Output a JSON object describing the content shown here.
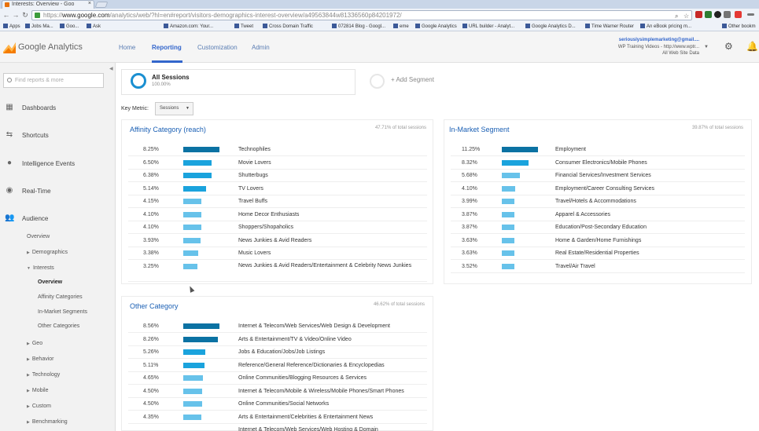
{
  "browser": {
    "tab_title": "Interests: Overview - Goo",
    "url_scheme": "https://",
    "url_host": "www.google.com",
    "url_path": "/analytics/web/?hl=en#report/visitors-demographics-interest-overview/a49563844w81336560p84201972/",
    "bookmarks": [
      "Apps",
      "Jobs Ma...",
      "Goo...",
      "Ask",
      "Amazon.com: Your...",
      "Tweet",
      "Cross Domain Traffic",
      "072814 Blog - Googl...",
      "eme",
      "Google Analytics",
      "URL builder - Analyt...",
      "Google Analytics D...",
      "Time Warner Router",
      "An eBook pricing m...",
      "Other bookm"
    ]
  },
  "header": {
    "logo_text": "Google Analytics",
    "nav": [
      "Home",
      "Reporting",
      "Customization",
      "Admin"
    ],
    "account_email": "seriouslysimplemarketing@gmail....",
    "account_property": "WP Training Videos - http://www.wptr...",
    "account_view": "All Web Site Data"
  },
  "sidebar": {
    "search_placeholder": "Find reports & more",
    "items": {
      "dashboards": "Dashboards",
      "shortcuts": "Shortcuts",
      "intelligence": "Intelligence Events",
      "realtime": "Real-Time",
      "audience": "Audience"
    },
    "audience_sub": {
      "overview": "Overview",
      "demographics": "Demographics",
      "interests": "Interests",
      "geo": "Geo",
      "behavior": "Behavior",
      "technology": "Technology",
      "mobile": "Mobile",
      "custom": "Custom",
      "benchmarking": "Benchmarking"
    },
    "interests_sub": {
      "overview": "Overview",
      "affinity": "Affinity Categories",
      "inmarket": "In-Market Segments",
      "other": "Other Categories"
    }
  },
  "segment": {
    "name": "All Sessions",
    "pct": "100.00%",
    "add_label": "+ Add Segment"
  },
  "key_metric": {
    "label": "Key Metric:",
    "value": "Sessions"
  },
  "colors": {
    "bar_dark": "#0b72a3",
    "bar_mid": "#1aa3dd",
    "bar_light": "#67c2ea",
    "link": "#1a5fb4"
  },
  "affinity": {
    "title": "Affinity Category (reach)",
    "share": "47.71% of total sessions",
    "rows": [
      {
        "pct": "8.25%",
        "label": "Technophiles",
        "value": 8.25
      },
      {
        "pct": "6.50%",
        "label": "Movie Lovers",
        "value": 6.5
      },
      {
        "pct": "6.38%",
        "label": "Shutterbugs",
        "value": 6.38
      },
      {
        "pct": "5.14%",
        "label": "TV Lovers",
        "value": 5.14
      },
      {
        "pct": "4.15%",
        "label": "Travel Buffs",
        "value": 4.15
      },
      {
        "pct": "4.10%",
        "label": "Home Decor Enthusiasts",
        "value": 4.1
      },
      {
        "pct": "4.10%",
        "label": "Shoppers/Shopaholics",
        "value": 4.1
      },
      {
        "pct": "3.93%",
        "label": "News Junkies & Avid Readers",
        "value": 3.93
      },
      {
        "pct": "3.38%",
        "label": "Music Lovers",
        "value": 3.38
      },
      {
        "pct": "3.25%",
        "label": "News Junkies & Avid Readers/Entertainment & Celebrity News Junkies",
        "value": 3.25
      }
    ]
  },
  "inmarket": {
    "title": "In-Market Segment",
    "share": "39.87% of total sessions",
    "rows": [
      {
        "pct": "11.25%",
        "label": "Employment",
        "value": 11.25
      },
      {
        "pct": "8.32%",
        "label": "Consumer Electronics/Mobile Phones",
        "value": 8.32
      },
      {
        "pct": "5.68%",
        "label": "Financial Services/Investment Services",
        "value": 5.68
      },
      {
        "pct": "4.10%",
        "label": "Employment/Career Consulting Services",
        "value": 4.1
      },
      {
        "pct": "3.99%",
        "label": "Travel/Hotels & Accommodations",
        "value": 3.99
      },
      {
        "pct": "3.87%",
        "label": "Apparel & Accessories",
        "value": 3.87
      },
      {
        "pct": "3.87%",
        "label": "Education/Post-Secondary Education",
        "value": 3.87
      },
      {
        "pct": "3.63%",
        "label": "Home & Garden/Home Furnishings",
        "value": 3.63
      },
      {
        "pct": "3.63%",
        "label": "Real Estate/Residential Properties",
        "value": 3.63
      },
      {
        "pct": "3.52%",
        "label": "Travel/Air Travel",
        "value": 3.52
      }
    ]
  },
  "other": {
    "title": "Other Category",
    "share": "46.62% of total sessions",
    "rows": [
      {
        "pct": "8.56%",
        "label": "Internet & Telecom/Web Services/Web Design & Development",
        "value": 8.56
      },
      {
        "pct": "8.26%",
        "label": "Arts & Entertainment/TV & Video/Online Video",
        "value": 8.26
      },
      {
        "pct": "5.26%",
        "label": "Jobs & Education/Jobs/Job Listings",
        "value": 5.26
      },
      {
        "pct": "5.11%",
        "label": "Reference/General Reference/Dictionaries & Encyclopedias",
        "value": 5.11
      },
      {
        "pct": "4.65%",
        "label": "Online Communities/Blogging Resources & Services",
        "value": 4.65
      },
      {
        "pct": "4.50%",
        "label": "Internet & Telecom/Mobile & Wireless/Mobile Phones/Smart Phones",
        "value": 4.5
      },
      {
        "pct": "4.50%",
        "label": "Online Communities/Social Networks",
        "value": 4.5
      },
      {
        "pct": "4.35%",
        "label": "Arts & Entertainment/Celebrities & Entertainment News",
        "value": 4.35
      },
      {
        "pct": "",
        "label": "Internet & Telecom/Web Services/Web Hosting & Domain",
        "value": 0
      }
    ]
  }
}
